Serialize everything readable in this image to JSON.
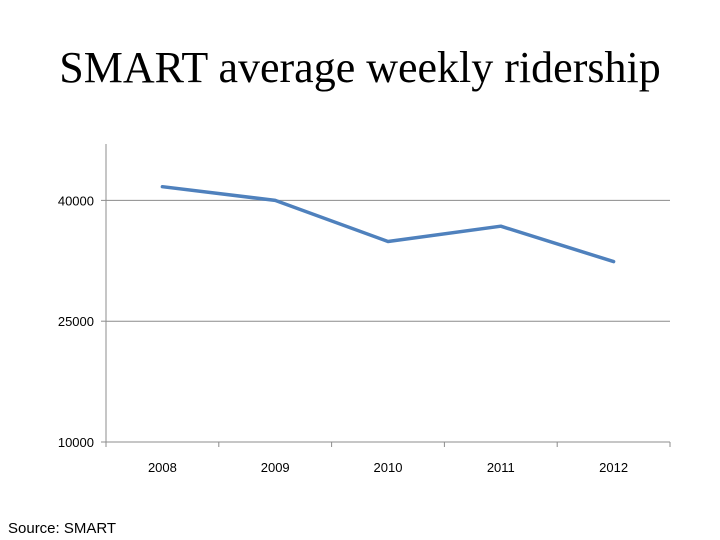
{
  "title": "SMART average weekly ridership",
  "source": "Source: SMART",
  "chart_data": {
    "type": "line",
    "title": "SMART average weekly ridership",
    "categories": [
      "2008",
      "2009",
      "2010",
      "2011",
      "2012"
    ],
    "series": [
      {
        "values": [
          41700,
          40000,
          34900,
          36800,
          32400
        ],
        "color": "#4f81bd"
      }
    ],
    "ylim": [
      10000,
      47000
    ],
    "yticks": [
      10000,
      25000,
      40000
    ],
    "grid": true,
    "legend": "none",
    "xlabel": "",
    "ylabel": ""
  }
}
